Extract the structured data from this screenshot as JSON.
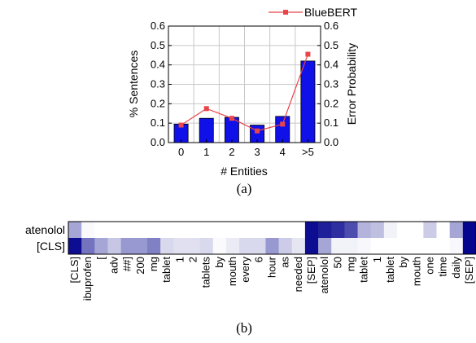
{
  "chart_data": [
    {
      "type": "bar",
      "panel_label": "(a)",
      "categories": [
        "0",
        "1",
        "2",
        "3",
        "4",
        ">5"
      ],
      "series": [
        {
          "axis": "left",
          "type": "bar",
          "color": "#1010e8",
          "values": [
            0.095,
            0.125,
            0.13,
            0.09,
            0.135,
            0.42
          ]
        },
        {
          "axis": "right",
          "type": "line",
          "name": "BlueBERT",
          "color": "#e8454a",
          "values": [
            0.09,
            0.175,
            0.125,
            0.06,
            0.095,
            0.455
          ]
        }
      ],
      "xlabel": "# Entities",
      "ylabel": "% Sentences",
      "y2label": "Error Probability",
      "ylim": [
        0.0,
        0.6
      ],
      "y2lim": [
        0.0,
        0.6
      ],
      "yticks": [
        "0.0",
        "0.1",
        "0.2",
        "0.3",
        "0.4",
        "0.5",
        "0.6"
      ],
      "grid": true,
      "legend": "top-right"
    },
    {
      "type": "heatmap",
      "panel_label": "(b)",
      "rows": [
        "atenolol",
        "[CLS]"
      ],
      "columns": [
        "[CLS]",
        "ibuprofen",
        "[",
        "adv",
        "##]",
        "200",
        "mg",
        "tablet",
        "1",
        "2",
        "tablets",
        "by",
        "mouth",
        "every",
        "6",
        "hour",
        "as",
        "needed",
        "[SEP]",
        "atenolol",
        "50",
        "mg",
        "tablet",
        "1",
        "tablet",
        "by",
        "mouth",
        "one",
        "time",
        "daily",
        "[SEP]"
      ],
      "values": [
        [
          0.35,
          0.02,
          0,
          0,
          0,
          0,
          0,
          0,
          0,
          0,
          0,
          0,
          0,
          0,
          0,
          0,
          0,
          0,
          0.95,
          0.88,
          0.82,
          0.7,
          0.3,
          0.25,
          0.05,
          0,
          0,
          0.2,
          0,
          0.35,
          0.98
        ],
        [
          0.95,
          0.55,
          0.35,
          0.22,
          0.4,
          0.4,
          0.5,
          0.15,
          0.12,
          0.12,
          0.15,
          0.02,
          0.08,
          0.15,
          0.15,
          0.4,
          0.2,
          0.1,
          0.95,
          0.35,
          0.05,
          0.05,
          0.03,
          0,
          0,
          0,
          0,
          0,
          0,
          0.03,
          0.98
        ]
      ],
      "colormap": [
        "#ffffff",
        "#00008b"
      ]
    }
  ]
}
